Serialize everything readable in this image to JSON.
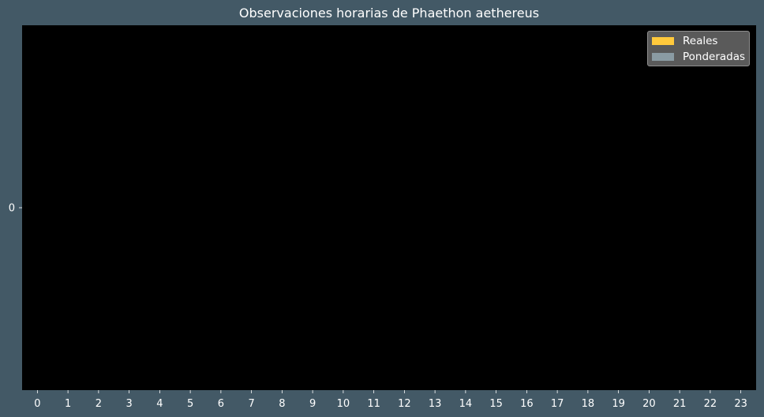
{
  "chart_data": {
    "type": "bar",
    "title": "Observaciones horarias de Phaethon aethereus",
    "xlabel": "",
    "ylabel": "",
    "categories": [
      "0",
      "1",
      "2",
      "3",
      "4",
      "5",
      "6",
      "7",
      "8",
      "9",
      "10",
      "11",
      "12",
      "13",
      "14",
      "15",
      "16",
      "17",
      "18",
      "19",
      "20",
      "21",
      "22",
      "23"
    ],
    "y_ticks": [
      "0"
    ],
    "series": [
      {
        "name": "Reales",
        "color": "#ffc93c",
        "values": [
          0,
          0,
          0,
          0,
          0,
          0,
          0,
          0,
          0,
          0,
          0,
          0,
          0,
          0,
          0,
          0,
          0,
          0,
          0,
          0,
          0,
          0,
          0,
          0
        ]
      },
      {
        "name": "Ponderadas",
        "color": "#8a9ba3",
        "values": [
          0,
          0,
          0,
          0,
          0,
          0,
          0,
          0,
          0,
          0,
          0,
          0,
          0,
          0,
          0,
          0,
          0,
          0,
          0,
          0,
          0,
          0,
          0,
          0
        ]
      }
    ],
    "legend_position": "top-right",
    "grid": false,
    "colors": {
      "figure_bg": "#435966",
      "plot_bg": "#000000",
      "text": "#ffffff"
    }
  }
}
